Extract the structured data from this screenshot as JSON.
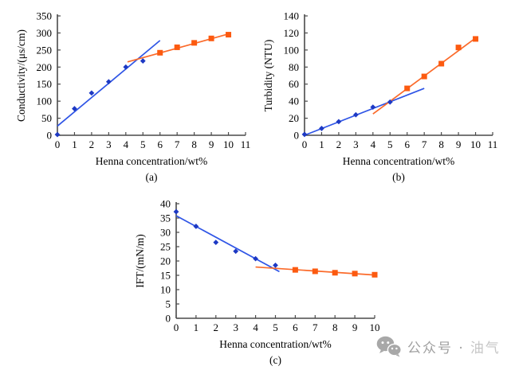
{
  "page": {
    "background": "#ffffff"
  },
  "style": {
    "axis_color": "#4a4a4a",
    "tick_text_color": "#000000",
    "blue_marker": "#1d39c4",
    "blue_fit_line": "#2f55e6",
    "orange_marker": "#fc5a10",
    "orange_fit_line": "#fb6a2a",
    "watermark_gray": "#a0a0a0"
  },
  "watermark": {
    "icon": "wechat-icon",
    "text_main": "公众号 · ",
    "text_faded": "油气"
  },
  "chart_data": [
    {
      "id": "a",
      "type": "scatter",
      "caption": "(a)",
      "xlabel": "Henna concentration/wt%",
      "ylabel": "Conductivity/(μs/cm)",
      "xlim": [
        0,
        11
      ],
      "xstep": 1,
      "ylim": [
        0,
        350
      ],
      "ystep": 50,
      "grid": false,
      "legend": "none",
      "series": [
        {
          "name": "low-concentration-diamonds",
          "marker": "diamond",
          "color": "#1d39c4",
          "x": [
            0,
            1,
            2,
            3,
            4,
            5
          ],
          "y": [
            2,
            78,
            124,
            157,
            200,
            218
          ],
          "fit": {
            "x": [
              0,
              6
            ],
            "y": [
              27,
              278
            ],
            "color": "#2f55e6"
          }
        },
        {
          "name": "high-concentration-squares",
          "marker": "square",
          "color": "#fc5a10",
          "x": [
            6,
            7,
            8,
            9,
            10
          ],
          "y": [
            242,
            258,
            271,
            284,
            295
          ],
          "fit": {
            "x": [
              4.1,
              10
            ],
            "y": [
              215,
              297
            ],
            "color": "#fb6a2a"
          }
        }
      ]
    },
    {
      "id": "b",
      "type": "scatter",
      "caption": "(b)",
      "xlabel": "Henna concentration/wt%",
      "ylabel": "Turbidity (NTU)",
      "xlim": [
        0,
        11
      ],
      "xstep": 1,
      "ylim": [
        0,
        140
      ],
      "ystep": 20,
      "grid": false,
      "legend": "none",
      "series": [
        {
          "name": "low-concentration-diamonds",
          "marker": "diamond",
          "color": "#1d39c4",
          "x": [
            0,
            1,
            2,
            3,
            4,
            5
          ],
          "y": [
            1,
            8,
            16,
            24,
            33,
            39
          ],
          "fit": {
            "x": [
              0,
              7
            ],
            "y": [
              0,
              55
            ],
            "color": "#2f55e6"
          }
        },
        {
          "name": "high-concentration-squares",
          "marker": "square",
          "color": "#fc5a10",
          "x": [
            6,
            7,
            8,
            9,
            10
          ],
          "y": [
            55,
            69,
            84,
            103,
            113
          ],
          "fit": {
            "x": [
              4,
              10
            ],
            "y": [
              25,
              114
            ],
            "color": "#fb6a2a"
          }
        }
      ]
    },
    {
      "id": "c",
      "type": "scatter",
      "caption": "(c)",
      "xlabel": "Henna concentration/wt%",
      "ylabel": "IFT/(mN/m)",
      "xlim": [
        0,
        10
      ],
      "xstep": 1,
      "ylim": [
        0,
        40
      ],
      "ystep": 5,
      "grid": false,
      "legend": "none",
      "series": [
        {
          "name": "low-concentration-diamonds",
          "marker": "diamond",
          "color": "#1d39c4",
          "x": [
            0,
            1,
            2,
            3,
            4,
            5
          ],
          "y": [
            37.2,
            32.1,
            26.5,
            23.4,
            20.8,
            18.5
          ],
          "fit": {
            "x": [
              0,
              5.2
            ],
            "y": [
              35.8,
              16.3
            ],
            "color": "#2f55e6"
          }
        },
        {
          "name": "high-concentration-squares",
          "marker": "square",
          "color": "#fc5a10",
          "x": [
            6,
            7,
            8,
            9,
            10
          ],
          "y": [
            16.9,
            16.4,
            15.9,
            15.6,
            15.2
          ],
          "fit": {
            "x": [
              4,
              10
            ],
            "y": [
              17.9,
              15.1
            ],
            "color": "#fb6a2a"
          }
        }
      ]
    }
  ]
}
